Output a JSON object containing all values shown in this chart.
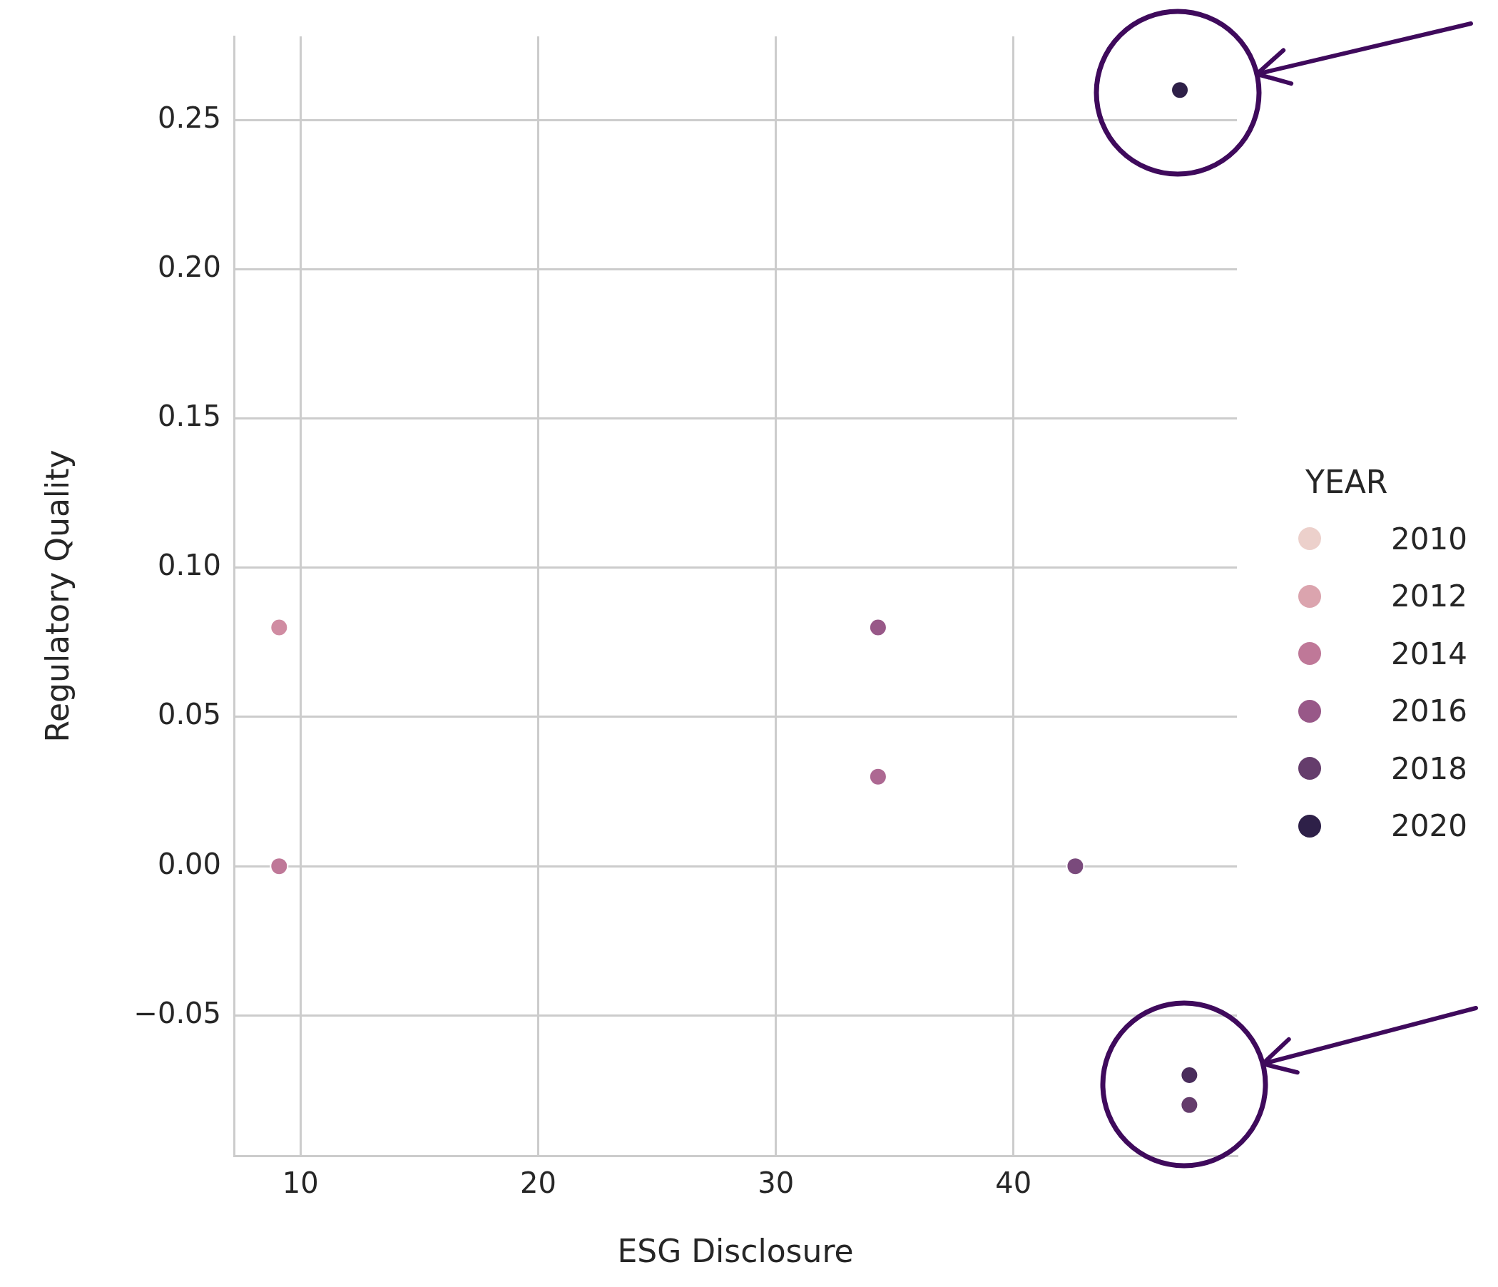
{
  "chart_data": {
    "type": "scatter",
    "xlabel": "ESG Disclosure",
    "ylabel": "Regulatory Quality",
    "legend_title": "YEAR",
    "xlim": [
      7.2,
      49.4
    ],
    "ylim": [
      -0.097,
      0.278
    ],
    "xticks": [
      10,
      20,
      30,
      40
    ],
    "yticks": [
      {
        "value": -0.05,
        "label": "−0.05"
      },
      {
        "value": 0,
        "label": "0.00"
      },
      {
        "value": 0.05,
        "label": "0.05"
      },
      {
        "value": 0.1,
        "label": "0.10"
      },
      {
        "value": 0.15,
        "label": "0.15"
      },
      {
        "value": 0.2,
        "label": "0.20"
      },
      {
        "value": 0.25,
        "label": "0.25"
      }
    ],
    "grid": true,
    "legend": "right",
    "marker": "circle",
    "series": [
      {
        "name": "2010",
        "color": "#ecd0cb"
      },
      {
        "name": "2012",
        "color": "#dba4ae"
      },
      {
        "color": "#d08ca2",
        "x": [
          9.1
        ],
        "values": [
          0.08
        ]
      },
      {
        "name": "2014",
        "color": "#bf7898",
        "x": [
          9.1
        ],
        "values": [
          0.0
        ]
      },
      {
        "color": "#ad6892",
        "x": [
          34.3
        ],
        "values": [
          0.03
        ]
      },
      {
        "name": "2016",
        "color": "#985888",
        "x": [
          34.3
        ],
        "values": [
          0.08
        ]
      },
      {
        "color": "#7a4a7c",
        "x": [
          42.6
        ],
        "values": [
          0.0
        ]
      },
      {
        "name": "2018",
        "color": "#653d6c",
        "x": [
          47.4
        ],
        "values": [
          -0.08
        ]
      },
      {
        "color": "#4a2d5c",
        "x": [
          47.4
        ],
        "values": [
          -0.07
        ]
      },
      {
        "name": "2020",
        "color": "#2e2048",
        "x": [
          47.0
        ],
        "values": [
          0.26
        ]
      }
    ]
  }
}
